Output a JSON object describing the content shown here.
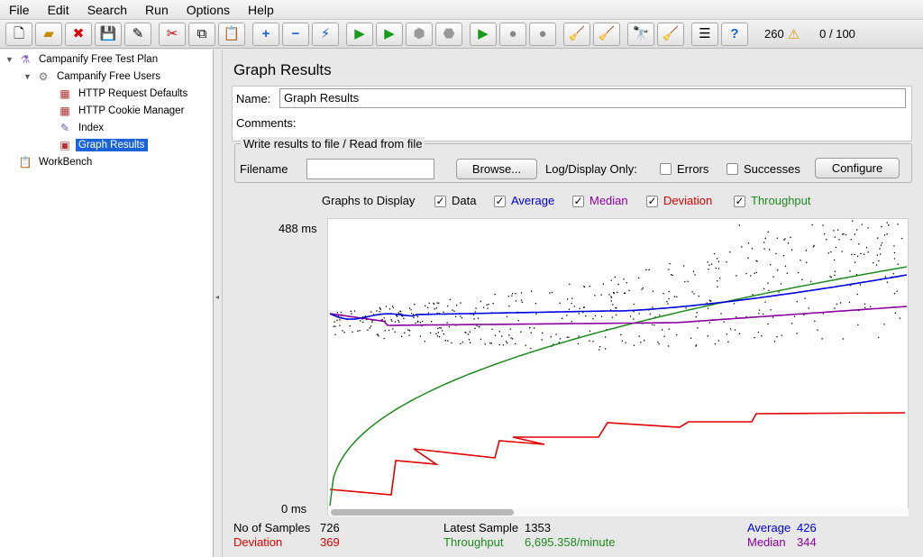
{
  "menu": [
    "File",
    "Edit",
    "Search",
    "Run",
    "Options",
    "Help"
  ],
  "toolbar": {
    "groups": [
      [
        "new-icon",
        "open-icon",
        "close-icon",
        "save-icon",
        "save-as-icon"
      ],
      [
        "cut-icon",
        "copy-icon",
        "paste-icon"
      ],
      [
        "expand-icon",
        "collapse-icon",
        "toggle-icon"
      ],
      [
        "start-icon",
        "start-no-pause-icon",
        "stop-icon",
        "shutdown-icon"
      ],
      [
        "remote-start-icon",
        "remote-stop-icon",
        "remote-shutdown-icon"
      ],
      [
        "clear-icon",
        "clear-all-icon"
      ],
      [
        "search-icon",
        "reset-search-icon"
      ],
      [
        "function-helper-icon",
        "help-icon"
      ]
    ],
    "error_count": "260",
    "threads": "0 / 100"
  },
  "tree": {
    "items": [
      {
        "label": "Campanify Free Test Plan",
        "icon": "test-plan-icon",
        "level": 0,
        "expanded": true
      },
      {
        "label": "Campanify Free Users",
        "icon": "thread-group-icon",
        "level": 1,
        "expanded": true
      },
      {
        "label": "HTTP Request Defaults",
        "icon": "config-element-icon",
        "level": 2
      },
      {
        "label": "HTTP Cookie Manager",
        "icon": "config-element-icon",
        "level": 2
      },
      {
        "label": "Index",
        "icon": "sampler-icon",
        "level": 2
      },
      {
        "label": "Graph Results",
        "icon": "listener-icon",
        "level": 2,
        "selected": true
      },
      {
        "label": "WorkBench",
        "icon": "workbench-icon",
        "level": 0
      }
    ]
  },
  "panel": {
    "title": "Graph Results",
    "name_label": "Name:",
    "name_value": "Graph Results",
    "comments_label": "Comments:",
    "file_section": "Write results to file / Read from file",
    "filename_label": "Filename",
    "filename_value": "",
    "browse_label": "Browse...",
    "log_display_label": "Log/Display Only:",
    "errors_label": "Errors",
    "successes_label": "Successes",
    "configure_label": "Configure",
    "graphs_to_display": "Graphs to Display",
    "graph_options": [
      {
        "label": "Data",
        "checked": true,
        "color": "#000000"
      },
      {
        "label": "Average",
        "checked": true,
        "color": "#0000dd"
      },
      {
        "label": "Median",
        "checked": true,
        "color": "#8a00a0"
      },
      {
        "label": "Deviation",
        "checked": true,
        "color": "#e00000"
      },
      {
        "label": "Throughput",
        "checked": true,
        "color": "#1e8a1e"
      }
    ]
  },
  "graph": {
    "y_max_label": "488 ms",
    "y_min_label": "0 ms",
    "y_max": 488,
    "scroll_fraction": 0.32
  },
  "stats": {
    "samples_label": "No of Samples",
    "samples_value": "726",
    "latest_label": "Latest Sample",
    "latest_value": "1353",
    "average_label": "Average",
    "average_value": "426",
    "deviation_label": "Deviation",
    "deviation_value": "369",
    "throughput_label": "Throughput",
    "throughput_value": "6,695.358/minute",
    "median_label": "Median",
    "median_value": "344"
  }
}
